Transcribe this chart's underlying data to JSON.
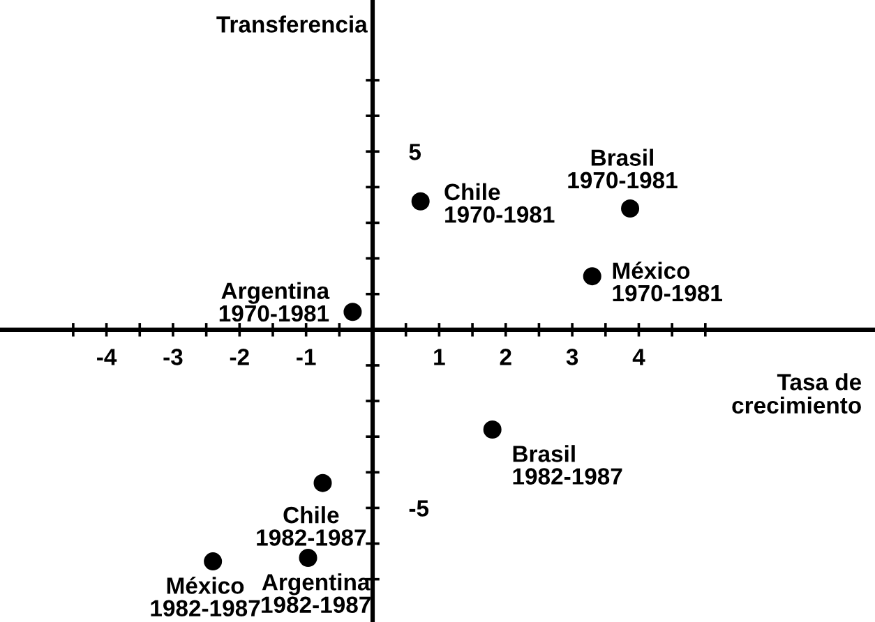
{
  "chart_data": {
    "type": "scatter",
    "xlabel": "Tasa de\ncrecimiento",
    "ylabel": "Transferencia",
    "x": [
      0.72,
      3.87,
      3.3,
      -0.3,
      1.8,
      -0.75,
      -0.97,
      -2.4
    ],
    "series": [
      {
        "color": "#000000",
        "values": [
          3.6,
          3.4,
          1.5,
          0.5,
          -2.8,
          -4.3,
          -6.4,
          -6.5
        ]
      }
    ],
    "marker": "circle",
    "xlim": [
      -5.6,
      7.55
    ],
    "ylim": [
      -8.2,
      9.25
    ],
    "xticks": [
      -4,
      -3,
      -2,
      -1,
      {
        "value": -0.5,
        "label": null
      },
      {
        "value": 0.5,
        "label": null
      },
      1,
      2,
      3,
      4,
      {
        "value": -4.5,
        "label": null
      },
      {
        "value": -3.5,
        "label": null
      },
      {
        "value": -2.5,
        "label": null
      },
      {
        "value": -1.5,
        "label": null
      },
      {
        "value": 1.5,
        "label": null
      },
      {
        "value": 2.5,
        "label": null
      },
      {
        "value": 3.5,
        "label": null
      },
      {
        "value": 4.5,
        "label": null
      },
      {
        "value": 5,
        "label": null
      }
    ],
    "yticks": [
      5,
      -5,
      {
        "value": 1,
        "label": null
      },
      {
        "value": 2,
        "label": null
      },
      {
        "value": 3,
        "label": null
      },
      {
        "value": 4,
        "label": null
      },
      {
        "value": 6,
        "label": null
      },
      {
        "value": 7,
        "label": null
      },
      {
        "value": -1,
        "label": null
      },
      {
        "value": -2,
        "label": null
      },
      {
        "value": -3,
        "label": null
      },
      {
        "value": -4,
        "label": null
      },
      {
        "value": -6,
        "label": null
      },
      {
        "value": -7,
        "label": null
      }
    ],
    "annotations": [
      {
        "text": "Chile\n1970-1981",
        "x": 0.72,
        "y": 3.6
      },
      {
        "text": "Brasil\n1970-1981",
        "x": 3.87,
        "y": 3.4
      },
      {
        "text": "México\n1970-1981",
        "x": 3.3,
        "y": 1.5
      },
      {
        "text": "Argentina\n1970-1981",
        "x": -0.3,
        "y": 0.5
      },
      {
        "text": "Brasil\n1982-1987",
        "x": 1.8,
        "y": -2.8
      },
      {
        "text": "Chile\n1982-1987",
        "x": -0.75,
        "y": -4.3
      },
      {
        "text": "Argentina\n1982-1987",
        "x": -0.97,
        "y": -6.4
      },
      {
        "text": "México\n1982-1987",
        "x": -2.4,
        "y": -6.5
      }
    ],
    "grid": false
  }
}
